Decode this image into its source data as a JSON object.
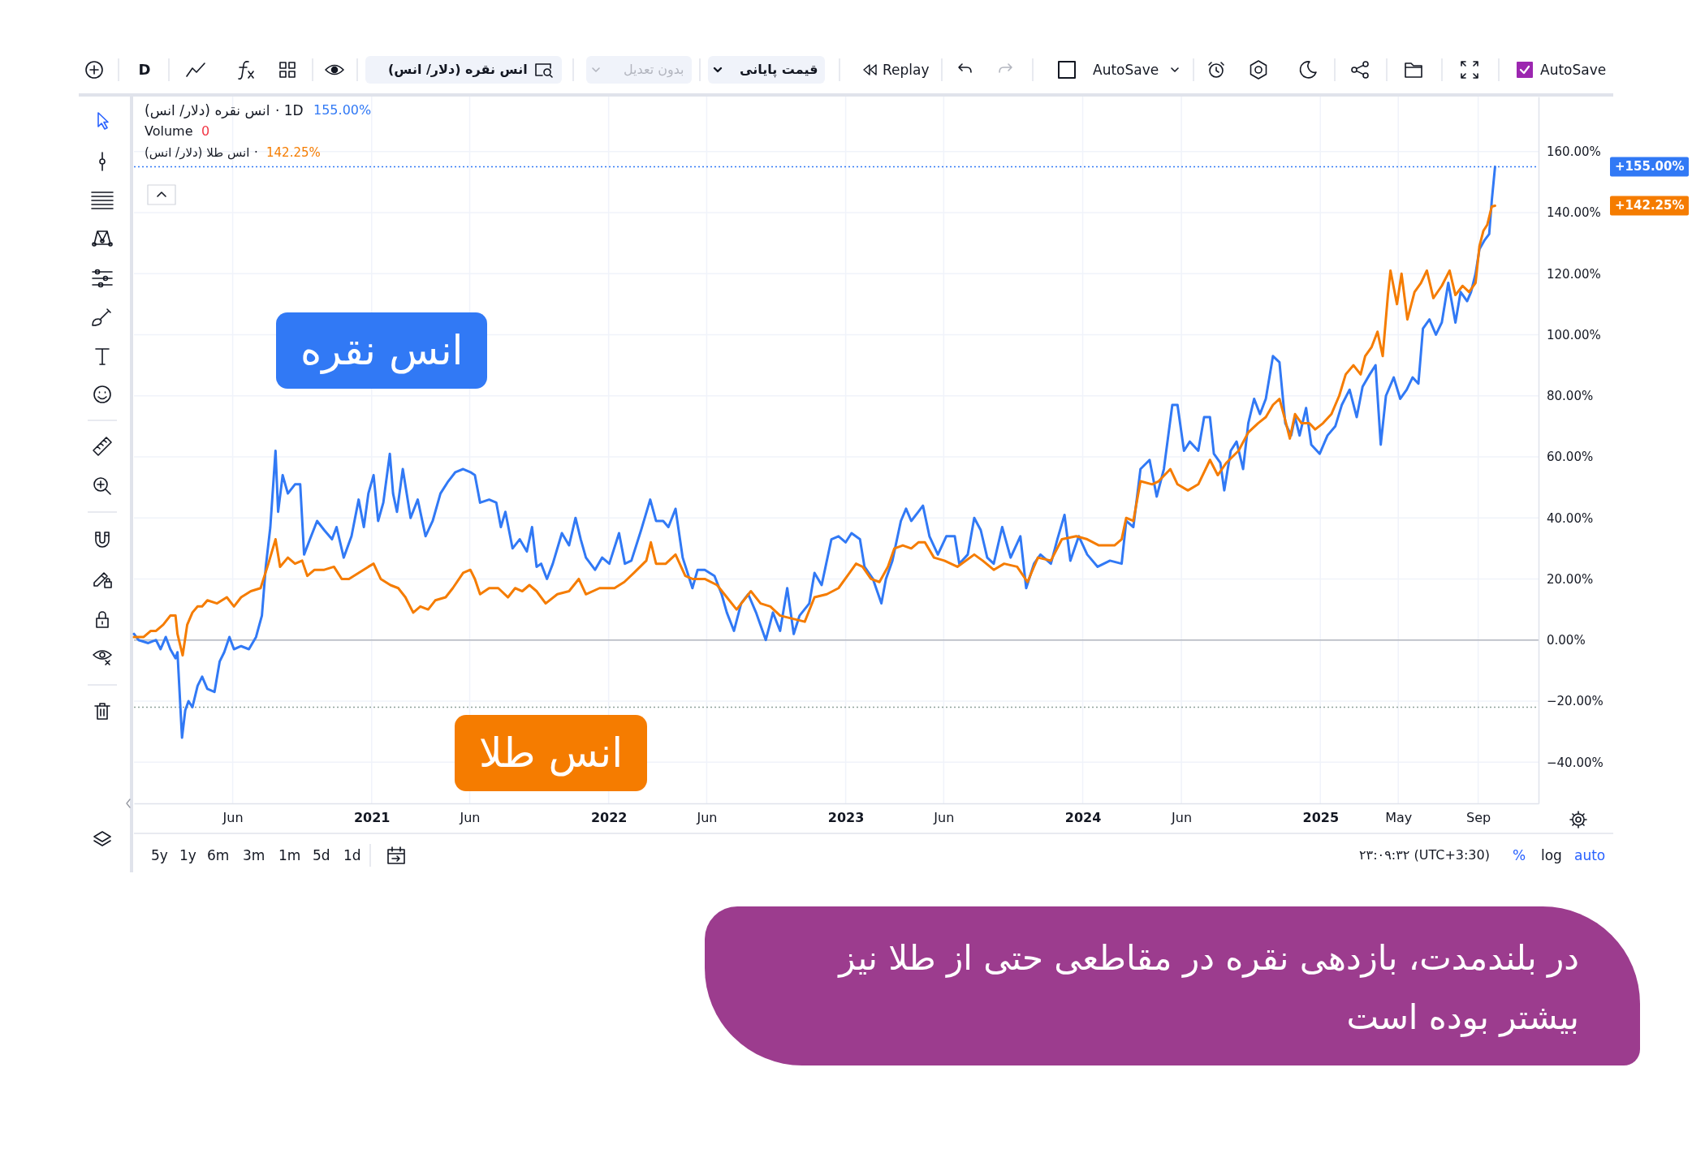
{
  "chart_data": {
    "type": "line",
    "xlim": [
      "2020-01-01",
      "2025-12-03"
    ],
    "xticks": [
      {
        "value": "2020-06-01",
        "label": "Jun"
      },
      {
        "value": "2021-01-01",
        "label": "2021"
      },
      {
        "value": "2021-06-01",
        "label": "Jun"
      },
      {
        "value": "2022-01-01",
        "label": "2022"
      },
      {
        "value": "2022-06-01",
        "label": "Jun"
      },
      {
        "value": "2023-01-01",
        "label": "2023"
      },
      {
        "value": "2023-06-01",
        "label": "Jun"
      },
      {
        "value": "2024-01-01",
        "label": "2024"
      },
      {
        "value": "2024-06-01",
        "label": "Jun"
      },
      {
        "value": "2025-01-01",
        "label": "2025"
      },
      {
        "value": "2025-05-01",
        "label": "May"
      },
      {
        "value": "2025-09-01",
        "label": "Sep"
      }
    ],
    "ylim": [
      -53.5,
      178
    ],
    "yticks": [
      {
        "value": -40,
        "label": "−40.00%"
      },
      {
        "value": -20,
        "label": "−20.00%"
      },
      {
        "value": 0,
        "label": "0.00%"
      },
      {
        "value": 20,
        "label": "20.00%"
      },
      {
        "value": 40,
        "label": "40.00%"
      },
      {
        "value": 60,
        "label": "60.00%"
      },
      {
        "value": 80,
        "label": "80.00%"
      },
      {
        "value": 100,
        "label": "100.00%"
      },
      {
        "value": 120,
        "label": "120.00%"
      },
      {
        "value": 140,
        "label": "140.00%"
      },
      {
        "value": 160,
        "label": "160.00%"
      }
    ],
    "grid": true,
    "ref_lines": [
      {
        "axis": "y",
        "value": 0,
        "color": "#b2b5be"
      },
      {
        "axis": "y",
        "value": 155,
        "color": "#3179f5",
        "line_style": "dotted"
      },
      {
        "axis": "y",
        "value": -22,
        "color": "#8fa39a",
        "line_style": "dotted"
      }
    ],
    "series": [
      {
        "name": "انس نقره",
        "color": "#3179f5",
        "x": [
          "2020-01-01",
          "2020-01-08",
          "2020-01-23",
          "2020-02-04",
          "2020-02-11",
          "2020-02-19",
          "2020-02-26",
          "2020-03-05",
          "2020-03-08",
          "2020-03-15",
          "2020-03-20",
          "2020-03-25",
          "2020-03-31",
          "2020-04-08",
          "2020-04-15",
          "2020-04-23",
          "2020-05-04",
          "2020-05-12",
          "2020-05-19",
          "2020-05-27",
          "2020-06-03",
          "2020-06-14",
          "2020-06-26",
          "2020-07-07",
          "2020-07-16",
          "2020-07-22",
          "2020-07-29",
          "2020-08-06",
          "2020-08-10",
          "2020-08-17",
          "2020-08-25",
          "2020-09-05",
          "2020-09-13",
          "2020-09-19",
          "2020-09-28",
          "2020-10-09",
          "2020-10-20",
          "2020-11-01",
          "2020-11-08",
          "2020-11-19",
          "2020-12-01",
          "2020-12-12",
          "2020-12-20",
          "2020-12-27",
          "2021-01-04",
          "2021-01-11",
          "2021-01-19",
          "2021-01-29",
          "2021-02-03",
          "2021-02-09",
          "2021-02-18",
          "2021-03-02",
          "2021-03-13",
          "2021-03-25",
          "2021-04-05",
          "2021-04-17",
          "2021-04-29",
          "2021-05-10",
          "2021-05-22",
          "2021-06-02",
          "2021-06-09",
          "2021-06-17",
          "2021-07-01",
          "2021-07-12",
          "2021-07-19",
          "2021-07-26",
          "2021-08-06",
          "2021-08-17",
          "2021-08-28",
          "2021-09-05",
          "2021-09-12",
          "2021-09-19",
          "2021-09-28",
          "2021-10-07",
          "2021-10-21",
          "2021-11-01",
          "2021-11-11",
          "2021-11-19",
          "2021-11-27",
          "2021-12-11",
          "2021-12-22",
          "2022-01-02",
          "2022-01-17",
          "2022-01-26",
          "2022-02-05",
          "2022-02-20",
          "2022-03-06",
          "2022-03-15",
          "2022-03-26",
          "2022-04-03",
          "2022-04-14",
          "2022-04-25",
          "2022-05-10",
          "2022-05-18",
          "2022-05-29",
          "2022-06-13",
          "2022-06-24",
          "2022-07-02",
          "2022-07-13",
          "2022-07-24",
          "2022-08-04",
          "2022-08-16",
          "2022-08-31",
          "2022-09-11",
          "2022-09-22",
          "2022-10-03",
          "2022-10-13",
          "2022-10-22",
          "2022-11-06",
          "2022-11-14",
          "2022-11-25",
          "2022-12-10",
          "2022-12-21",
          "2023-01-01",
          "2023-01-10",
          "2023-01-23",
          "2023-01-30",
          "2023-02-12",
          "2023-02-25",
          "2023-03-04",
          "2023-03-14",
          "2023-03-27",
          "2023-04-04",
          "2023-04-12",
          "2023-04-23",
          "2023-04-30",
          "2023-05-10",
          "2023-05-23",
          "2023-06-05",
          "2023-06-18",
          "2023-06-25",
          "2023-07-08",
          "2023-07-18",
          "2023-07-28",
          "2023-08-07",
          "2023-08-17",
          "2023-08-30",
          "2023-09-12",
          "2023-09-27",
          "2023-10-06",
          "2023-10-18",
          "2023-10-28",
          "2023-11-13",
          "2023-11-23",
          "2023-12-04",
          "2023-12-13",
          "2023-12-26",
          "2024-01-08",
          "2024-01-24",
          "2024-02-12",
          "2024-03-01",
          "2024-03-08",
          "2024-03-19",
          "2024-03-30",
          "2024-04-13",
          "2024-04-24",
          "2024-05-05",
          "2024-05-18",
          "2024-05-26",
          "2024-06-05",
          "2024-06-14",
          "2024-06-27",
          "2024-07-06",
          "2024-07-15",
          "2024-07-21",
          "2024-07-31",
          "2024-08-06",
          "2024-08-16",
          "2024-08-25",
          "2024-09-04",
          "2024-09-12",
          "2024-09-21",
          "2024-09-30",
          "2024-10-09",
          "2024-10-20",
          "2024-10-30",
          "2024-11-08",
          "2024-11-17",
          "2024-11-23",
          "2024-11-30",
          "2024-12-10",
          "2024-12-18",
          "2024-12-31",
          "2025-01-12",
          "2025-01-24",
          "2025-02-03",
          "2025-02-15",
          "2025-02-26",
          "2025-03-07",
          "2025-03-18",
          "2025-03-27",
          "2025-04-04",
          "2025-04-12",
          "2025-04-24",
          "2025-05-04",
          "2025-05-14",
          "2025-05-23",
          "2025-06-01",
          "2025-06-08",
          "2025-06-18",
          "2025-06-28",
          "2025-07-07",
          "2025-07-17",
          "2025-07-28",
          "2025-08-05",
          "2025-08-15",
          "2025-08-21",
          "2025-08-28",
          "2025-09-03",
          "2025-09-11",
          "2025-09-18",
          "2025-09-22",
          "2025-09-27"
        ],
        "values": [
          2,
          0,
          -1,
          0,
          -3,
          1,
          -3,
          -6,
          -4,
          -32,
          -23,
          -20,
          -22,
          -15,
          -12,
          -16,
          -17,
          -7,
          -4,
          1,
          -3,
          -2,
          -3,
          1,
          8,
          24,
          37,
          62,
          42,
          54,
          48,
          51,
          51,
          28,
          33,
          39,
          36,
          33,
          37,
          27,
          34,
          46,
          37,
          48,
          54,
          39,
          45,
          61,
          48,
          42,
          56,
          40,
          46,
          34,
          39,
          48,
          52,
          55,
          56,
          55,
          54,
          45,
          46,
          45,
          37,
          42,
          30,
          33,
          29,
          37,
          24,
          25,
          20,
          25,
          35,
          31,
          40,
          33,
          27,
          23,
          27,
          25,
          35,
          25,
          26,
          36,
          46,
          39,
          39,
          37,
          43,
          27,
          17,
          23,
          23,
          21,
          15,
          9,
          3,
          12,
          15,
          9,
          0,
          9,
          3,
          17,
          2,
          8,
          12,
          22,
          18,
          33,
          34,
          32,
          35,
          33,
          24,
          20,
          12,
          20,
          26,
          39,
          43,
          39,
          42,
          44,
          34,
          28,
          34,
          34,
          25,
          28,
          40,
          36,
          27,
          25,
          37,
          27,
          34,
          17,
          25,
          28,
          25,
          33,
          41,
          26,
          34,
          28,
          24,
          26,
          25,
          39,
          37,
          56,
          59,
          47,
          56,
          77,
          77,
          62,
          65,
          62,
          73,
          73,
          61,
          58,
          49,
          62,
          65,
          56,
          71,
          79,
          74,
          79,
          93,
          91,
          71,
          67,
          73,
          67,
          76,
          64,
          61,
          67,
          70,
          77,
          82,
          73,
          83,
          87,
          90,
          64,
          80,
          86,
          79,
          82,
          86,
          84,
          102,
          105,
          100,
          104,
          117,
          104,
          114,
          111,
          114,
          120,
          128,
          131,
          133,
          144,
          155
        ]
      },
      {
        "name": "انس طلا",
        "color": "#f57c00",
        "x": [
          "2020-01-01",
          "2020-01-16",
          "2020-01-27",
          "2020-02-04",
          "2020-02-15",
          "2020-02-26",
          "2020-03-05",
          "2020-03-08",
          "2020-03-16",
          "2020-03-23",
          "2020-03-31",
          "2020-04-08",
          "2020-04-15",
          "2020-04-23",
          "2020-05-08",
          "2020-05-23",
          "2020-06-03",
          "2020-06-14",
          "2020-06-29",
          "2020-07-14",
          "2020-07-26",
          "2020-08-06",
          "2020-08-13",
          "2020-08-25",
          "2020-09-05",
          "2020-09-16",
          "2020-09-24",
          "2020-10-05",
          "2020-10-20",
          "2020-11-04",
          "2020-11-16",
          "2020-11-27",
          "2020-12-12",
          "2020-12-27",
          "2021-01-04",
          "2021-01-15",
          "2021-01-30",
          "2021-02-11",
          "2021-02-22",
          "2021-03-06",
          "2021-03-17",
          "2021-03-29",
          "2021-04-09",
          "2021-04-25",
          "2021-05-06",
          "2021-05-22",
          "2021-06-02",
          "2021-06-09",
          "2021-06-17",
          "2021-07-01",
          "2021-07-15",
          "2021-07-30",
          "2021-08-10",
          "2021-08-21",
          "2021-09-01",
          "2021-09-12",
          "2021-09-26",
          "2021-10-14",
          "2021-11-01",
          "2021-11-16",
          "2021-11-27",
          "2021-12-18",
          "2022-01-10",
          "2022-01-25",
          "2022-02-09",
          "2022-02-28",
          "2022-03-07",
          "2022-03-15",
          "2022-03-30",
          "2022-04-14",
          "2022-04-29",
          "2022-05-10",
          "2022-05-29",
          "2022-06-17",
          "2022-07-02",
          "2022-07-17",
          "2022-08-08",
          "2022-08-23",
          "2022-09-07",
          "2022-09-22",
          "2022-10-11",
          "2022-10-30",
          "2022-11-14",
          "2022-12-03",
          "2022-12-21",
          "2023-01-07",
          "2023-01-17",
          "2023-01-27",
          "2023-02-09",
          "2023-02-22",
          "2023-03-07",
          "2023-03-17",
          "2023-03-30",
          "2023-04-12",
          "2023-04-23",
          "2023-05-03",
          "2023-05-17",
          "2023-06-02",
          "2023-06-22",
          "2023-07-18",
          "2023-07-31",
          "2023-08-17",
          "2023-09-02",
          "2023-09-22",
          "2023-10-08",
          "2023-10-24",
          "2023-11-13",
          "2023-11-30",
          "2023-12-22",
          "2024-01-08",
          "2024-01-26",
          "2024-02-19",
          "2024-03-01",
          "2024-03-08",
          "2024-03-19",
          "2024-03-30",
          "2024-04-17",
          "2024-04-27",
          "2024-05-15",
          "2024-05-26",
          "2024-06-11",
          "2024-06-27",
          "2024-07-15",
          "2024-07-27",
          "2024-08-09",
          "2024-08-28",
          "2024-09-12",
          "2024-09-27",
          "2024-10-09",
          "2024-10-20",
          "2024-10-30",
          "2024-11-08",
          "2024-11-15",
          "2024-11-23",
          "2024-12-03",
          "2024-12-15",
          "2024-12-24",
          "2025-01-05",
          "2025-01-18",
          "2025-01-30",
          "2025-02-09",
          "2025-02-21",
          "2025-03-04",
          "2025-03-11",
          "2025-03-21",
          "2025-03-30",
          "2025-04-07",
          "2025-04-15",
          "2025-04-19",
          "2025-04-29",
          "2025-05-06",
          "2025-05-15",
          "2025-05-26",
          "2025-06-05",
          "2025-06-14",
          "2025-06-24",
          "2025-07-07",
          "2025-07-19",
          "2025-07-28",
          "2025-08-08",
          "2025-08-18",
          "2025-08-28",
          "2025-09-03",
          "2025-09-09",
          "2025-09-15",
          "2025-09-22",
          "2025-09-27"
        ],
        "values": [
          1,
          1,
          3,
          3,
          5,
          8,
          8,
          2,
          -5,
          5,
          9,
          11,
          11,
          13,
          12,
          14,
          11,
          14,
          16,
          17,
          25,
          33,
          24,
          27,
          25,
          26,
          21,
          23,
          23,
          24,
          20,
          20,
          22,
          24,
          25,
          20,
          18,
          17,
          14,
          9,
          11,
          10,
          13,
          14,
          17,
          22,
          23,
          20,
          15,
          17,
          17,
          14,
          17,
          16,
          18,
          16,
          12,
          15,
          16,
          20,
          15,
          17,
          17,
          19,
          22,
          26,
          32,
          25,
          25,
          28,
          21,
          20,
          20,
          18,
          14,
          10,
          16,
          12,
          11,
          8,
          7,
          6,
          14,
          15,
          17,
          22,
          25,
          24,
          20,
          19,
          24,
          30,
          31,
          30,
          32,
          32,
          27,
          26,
          24,
          28,
          26,
          23,
          25,
          24,
          19,
          27,
          26,
          33,
          34,
          33,
          31,
          31,
          33,
          40,
          39,
          52,
          51,
          52,
          56,
          51,
          49,
          51,
          59,
          54,
          58,
          62,
          68,
          71,
          73,
          77,
          79,
          72,
          66,
          74,
          71,
          71,
          69,
          71,
          74,
          80,
          87,
          90,
          87,
          93,
          96,
          101,
          93,
          113,
          121,
          110,
          120,
          105,
          114,
          117,
          121,
          112,
          116,
          121,
          113,
          116,
          114,
          117,
          129,
          134,
          136,
          142,
          142.25
        ]
      }
    ],
    "annotations": [
      "D",
      "انس نقره (دلار/ انس)",
      "بدون تعدیل",
      "قیمت پایانی",
      "Replay",
      "AutoSave",
      "AutoSave",
      "انس نقره (دلار/ انس)",
      "· 1D",
      "155.00%",
      "Volume",
      "0",
      "انس طلا (دلار/ انس)",
      "·",
      "142.25%",
      "+155.00%",
      "+142.25%",
      "5y",
      "1y",
      "6m",
      "3m",
      "1m",
      "5d",
      "1d",
      "۲۳:۰۹:۳۲ (UTC+3:30)",
      "%",
      "log",
      "auto",
      "در بلندمدت، بازدهی نقره در مقاطعی حتی از طلا نیز بیشتر بوده است"
    ]
  }
}
